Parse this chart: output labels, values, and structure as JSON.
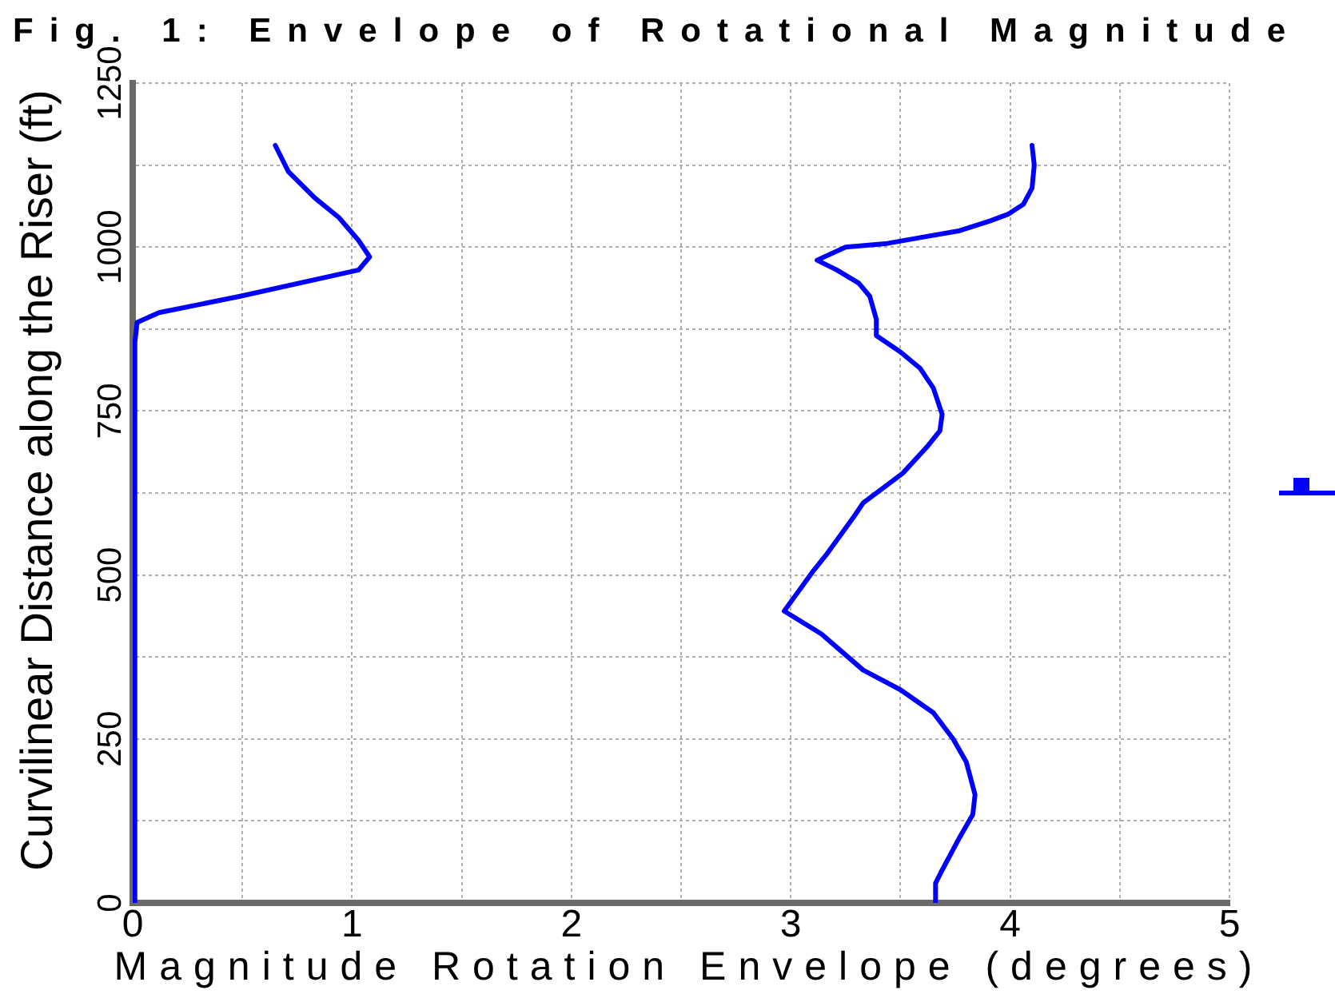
{
  "chart_data": {
    "type": "line",
    "title": "Fig. 1: Envelope of Rotational Magnitude",
    "xlabel": "Magnitude Rotation Envelope (degrees)",
    "ylabel": "Curvilinear Distance along the Riser (ft)",
    "xlim": [
      0,
      5
    ],
    "xticks": [
      0,
      {
        "value": 0.5,
        "label": null
      },
      1,
      {
        "value": 1.5,
        "label": null
      },
      2,
      {
        "value": 2.5,
        "label": null
      },
      3,
      {
        "value": 3.5,
        "label": null
      },
      4,
      {
        "value": 4.5,
        "label": null
      },
      5
    ],
    "ylim": [
      0,
      1250
    ],
    "yticks": [
      0,
      {
        "value": 125,
        "label": null
      },
      250,
      {
        "value": 375,
        "label": null
      },
      500,
      {
        "value": 625,
        "label": null
      },
      750,
      {
        "value": 875,
        "label": null
      },
      1000,
      {
        "value": 1125,
        "label": null
      },
      1250
    ],
    "grid": true,
    "series": [
      {
        "color": "#0000ff",
        "x": [
          0.01,
          0.01,
          0.01,
          0.01,
          0.01,
          0.02,
          0.12,
          0.49,
          1.03,
          1.08,
          1.03,
          0.94,
          0.83,
          0.71,
          0.65
        ],
        "values": [
          0,
          250,
          500,
          750,
          855,
          885,
          900,
          925,
          965,
          985,
          1010,
          1045,
          1075,
          1115,
          1155
        ]
      },
      {
        "color": "#0000ff",
        "x": [
          3.66,
          3.66,
          3.69,
          3.77,
          3.83,
          3.84,
          3.8,
          3.74,
          3.65,
          3.5,
          3.33,
          3.14,
          2.97,
          3.1,
          3.16,
          3.29,
          3.33,
          3.43,
          3.51,
          3.62,
          3.68,
          3.69,
          3.65,
          3.59,
          3.5,
          3.39,
          3.39,
          3.36,
          3.31,
          3.21,
          3.12,
          3.25,
          3.43,
          3.6,
          3.77,
          3.91,
          3.99,
          4.06,
          4.1,
          4.11,
          4.1
        ],
        "values": [
          0,
          30,
          50,
          100,
          135,
          165,
          215,
          250,
          290,
          325,
          355,
          410,
          445,
          505,
          530,
          590,
          610,
          635,
          655,
          695,
          720,
          745,
          785,
          815,
          840,
          865,
          890,
          925,
          945,
          965,
          980,
          1000,
          1005,
          1015,
          1025,
          1040,
          1050,
          1065,
          1090,
          1125,
          1155
        ]
      }
    ]
  }
}
